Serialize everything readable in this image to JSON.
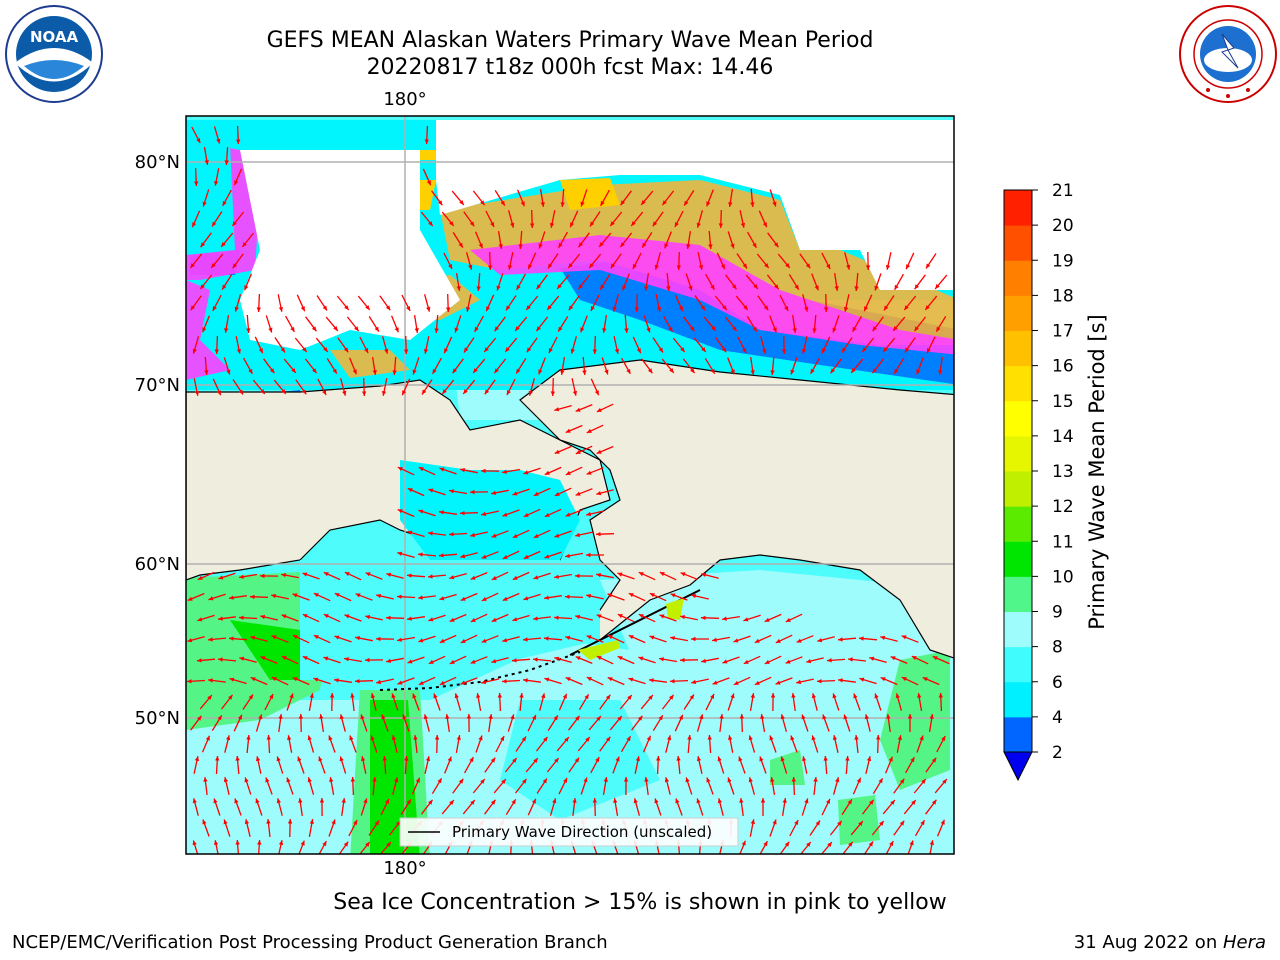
{
  "header": {
    "title_line1": "GEFS MEAN Alaskan Waters Primary Wave Mean Period",
    "title_line2": "20220817 t18z 000h fcst   Max: 14.46"
  },
  "logos": {
    "left": {
      "name": "NOAA logo",
      "text": "NOAA"
    },
    "right": {
      "name": "National Weather Service logo"
    }
  },
  "map": {
    "longitude_label_top": "180°",
    "longitude_label_bottom": "180°",
    "latitude_labels": [
      "80°N",
      "70°N",
      "60°N",
      "50°N"
    ],
    "legend_label": "Primary Wave Direction (unscaled)",
    "colors": {
      "land": "#efedde",
      "ocean_light": "#9ffcfc",
      "ocean_cyan": "#00f6fc",
      "ocean_mid": "#4ffcfc",
      "green_light": "#54f586",
      "green": "#00eb00",
      "blue": "#0080ff",
      "ice_pink": "#ff40ff",
      "ice_orange": "#ffb030",
      "ice_yellow": "#ffd000",
      "arrow": "#ff0000"
    }
  },
  "colorbar": {
    "label": "Primary Wave Mean Period [s]",
    "ticks": [
      "2",
      "4",
      "6",
      "8",
      "9",
      "10",
      "11",
      "12",
      "13",
      "14",
      "15",
      "16",
      "17",
      "18",
      "19",
      "20",
      "21"
    ],
    "colors": [
      "#0066ff",
      "#00f0ff",
      "#40fcfc",
      "#9ffcfc",
      "#50f68a",
      "#00e600",
      "#5aeb00",
      "#c0f000",
      "#e6f500",
      "#ffff00",
      "#ffe000",
      "#ffc000",
      "#ffa000",
      "#ff8000",
      "#ff5000",
      "#ff2000"
    ],
    "underflow_color": "#0000ee"
  },
  "caption": "Sea Ice Concentration > 15% is shown in pink to yellow",
  "footer": {
    "left": "NCEP/EMC/Verification Post Processing Product Generation Branch",
    "right_date": "31 Aug 2022 on ",
    "right_host": "Hera"
  }
}
